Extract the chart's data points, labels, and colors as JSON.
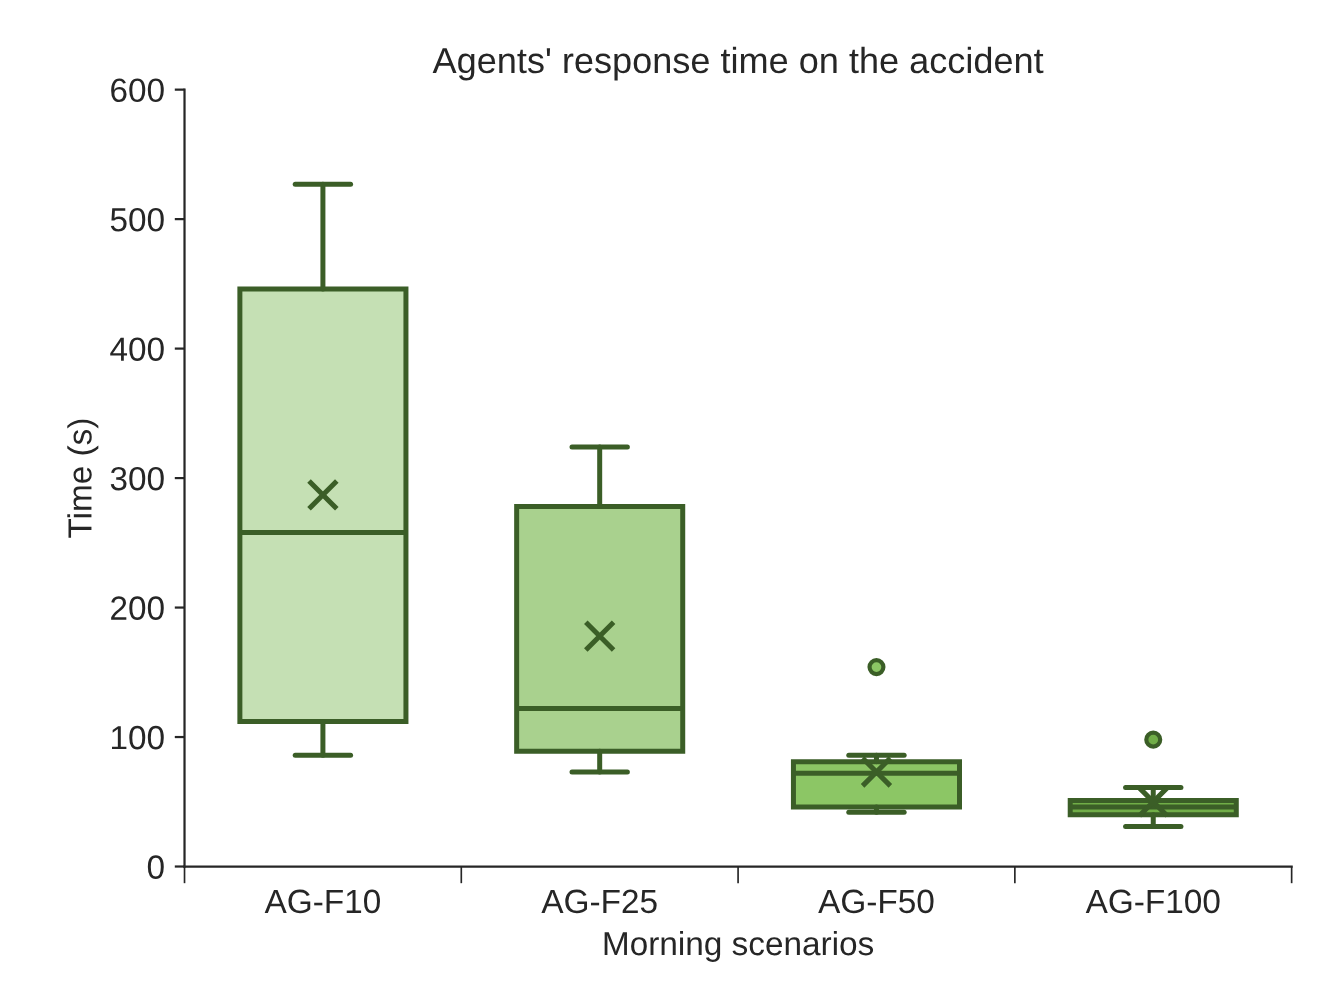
{
  "chart_data": {
    "type": "box",
    "title": "Agents' response time on the accident",
    "xlabel": "Morning scenarios",
    "ylabel": "Time (s)",
    "categories": [
      "AG-F10",
      "AG-F25",
      "AG-F50",
      "AG-F100"
    ],
    "boxes": [
      {
        "low": 86,
        "q1": 112,
        "median": 258,
        "q3": 446,
        "high": 527,
        "mean": 287
      },
      {
        "low": 73,
        "q1": 89,
        "median": 122,
        "q3": 278,
        "high": 324,
        "mean": 178
      },
      {
        "low": 42,
        "q1": 46,
        "median": 72,
        "q3": 81,
        "high": 86,
        "mean": 73,
        "outliers": [
          154
        ]
      },
      {
        "low": 31,
        "q1": 40,
        "median": 46,
        "q3": 51,
        "high": 61,
        "mean": 50,
        "outliers": [
          98
        ]
      }
    ],
    "colors": [
      "#c5e0b4",
      "#a9d18e",
      "#8cc665",
      "#70ad47"
    ],
    "ylim": [
      0,
      600
    ],
    "yticks": [
      0,
      100,
      200,
      300,
      400,
      500,
      600
    ],
    "grid": false,
    "legend": false
  }
}
